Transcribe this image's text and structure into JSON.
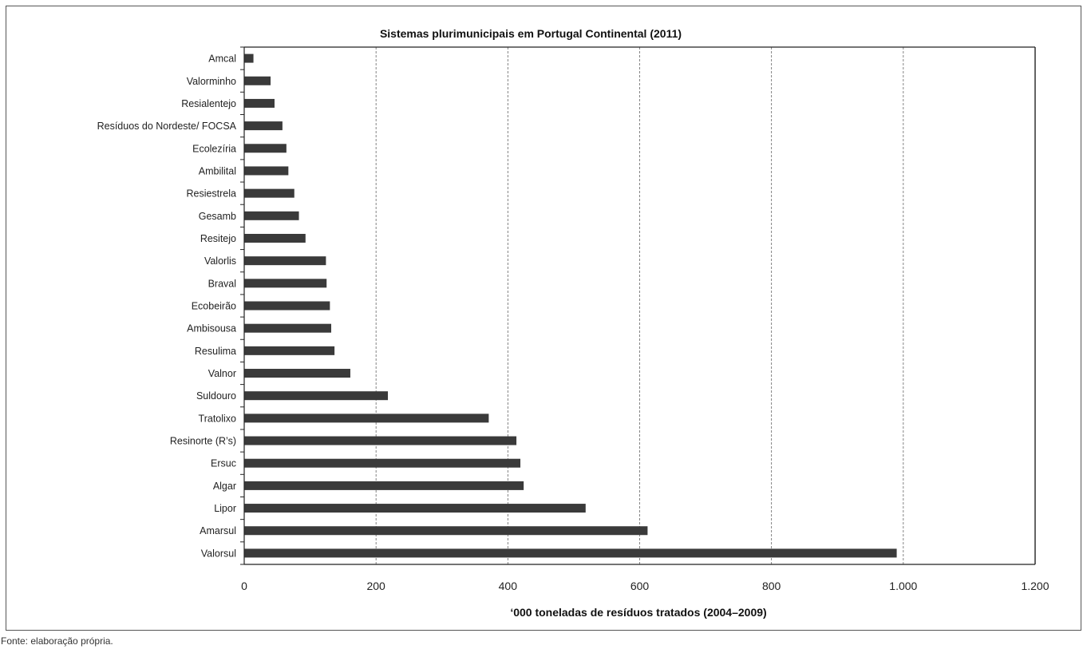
{
  "chart_data": {
    "type": "bar",
    "orientation": "horizontal",
    "title": "Sistemas plurimunicipais em Portugal Continental (2011)",
    "xlabel": "‘000 toneladas de resíduos tratados (2004–2009)",
    "ylabel": "",
    "xlim": [
      0,
      1200
    ],
    "x_ticks": [
      0,
      200,
      400,
      600,
      800,
      1000,
      1200
    ],
    "x_tick_labels": [
      "0",
      "200",
      "400",
      "600",
      "800",
      "1.000",
      "1.200"
    ],
    "grid": "vertical dashed",
    "bar_color": "#3a3a3a",
    "categories": [
      "Amcal",
      "Valorminho",
      "Resialentejo",
      "Resíduos do Nordeste/ FOCSA",
      "Ecolezíria",
      "Ambilital",
      "Resiestrela",
      "Gesamb",
      "Resitejo",
      "Valorlis",
      "Braval",
      "Ecobeirão",
      "Ambisousa",
      "Resulima",
      "Valnor",
      "Suldouro",
      "Tratolixo",
      "Resinorte (R’s)",
      "Ersuc",
      "Algar",
      "Lipor",
      "Amarsul",
      "Valorsul"
    ],
    "values": [
      14,
      40,
      46,
      58,
      64,
      67,
      76,
      83,
      93,
      124,
      125,
      130,
      132,
      137,
      161,
      218,
      371,
      413,
      419,
      424,
      518,
      612,
      990
    ]
  },
  "source": "Fonte: elaboração própria."
}
